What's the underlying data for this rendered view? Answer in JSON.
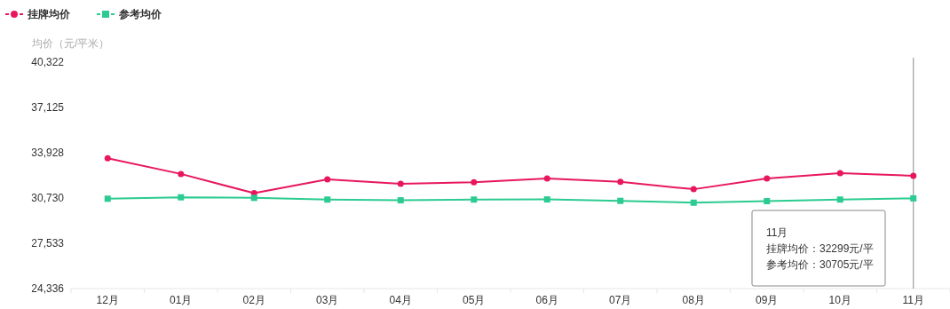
{
  "chart_data": {
    "type": "line",
    "ylabel": "均价（元/平米）",
    "categories": [
      "12月",
      "01月",
      "02月",
      "03月",
      "04月",
      "05月",
      "06月",
      "07月",
      "08月",
      "09月",
      "10月",
      "11月"
    ],
    "series": [
      {
        "name": "挂牌均价",
        "color": "#e8175d",
        "marker": "circle",
        "values": [
          33530,
          32430,
          31070,
          32050,
          31740,
          31840,
          32110,
          31870,
          31350,
          32110,
          32490,
          32299
        ]
      },
      {
        "name": "参考均价",
        "color": "#2bcb91",
        "marker": "square",
        "values": [
          30680,
          30780,
          30740,
          30620,
          30570,
          30620,
          30630,
          30530,
          30400,
          30510,
          30620,
          30705
        ]
      }
    ],
    "ylim": [
      24336,
      40322
    ],
    "yticks": [
      {
        "value": 24336,
        "label": "24,336"
      },
      {
        "value": 27533,
        "label": "27,533"
      },
      {
        "value": 30730,
        "label": "30,730"
      },
      {
        "value": 33928,
        "label": "33,928"
      },
      {
        "value": 37125,
        "label": "37,125"
      },
      {
        "value": 40322,
        "label": "40,322"
      }
    ],
    "ref_lines": [
      {
        "axis": "x",
        "value": "11月",
        "color": "#888888"
      }
    ],
    "annotations": [
      "11月",
      "挂牌均价：32299元/平",
      "参考均价：30705元/平"
    ],
    "legend": "top left",
    "grid": false,
    "line_style": "solid"
  }
}
